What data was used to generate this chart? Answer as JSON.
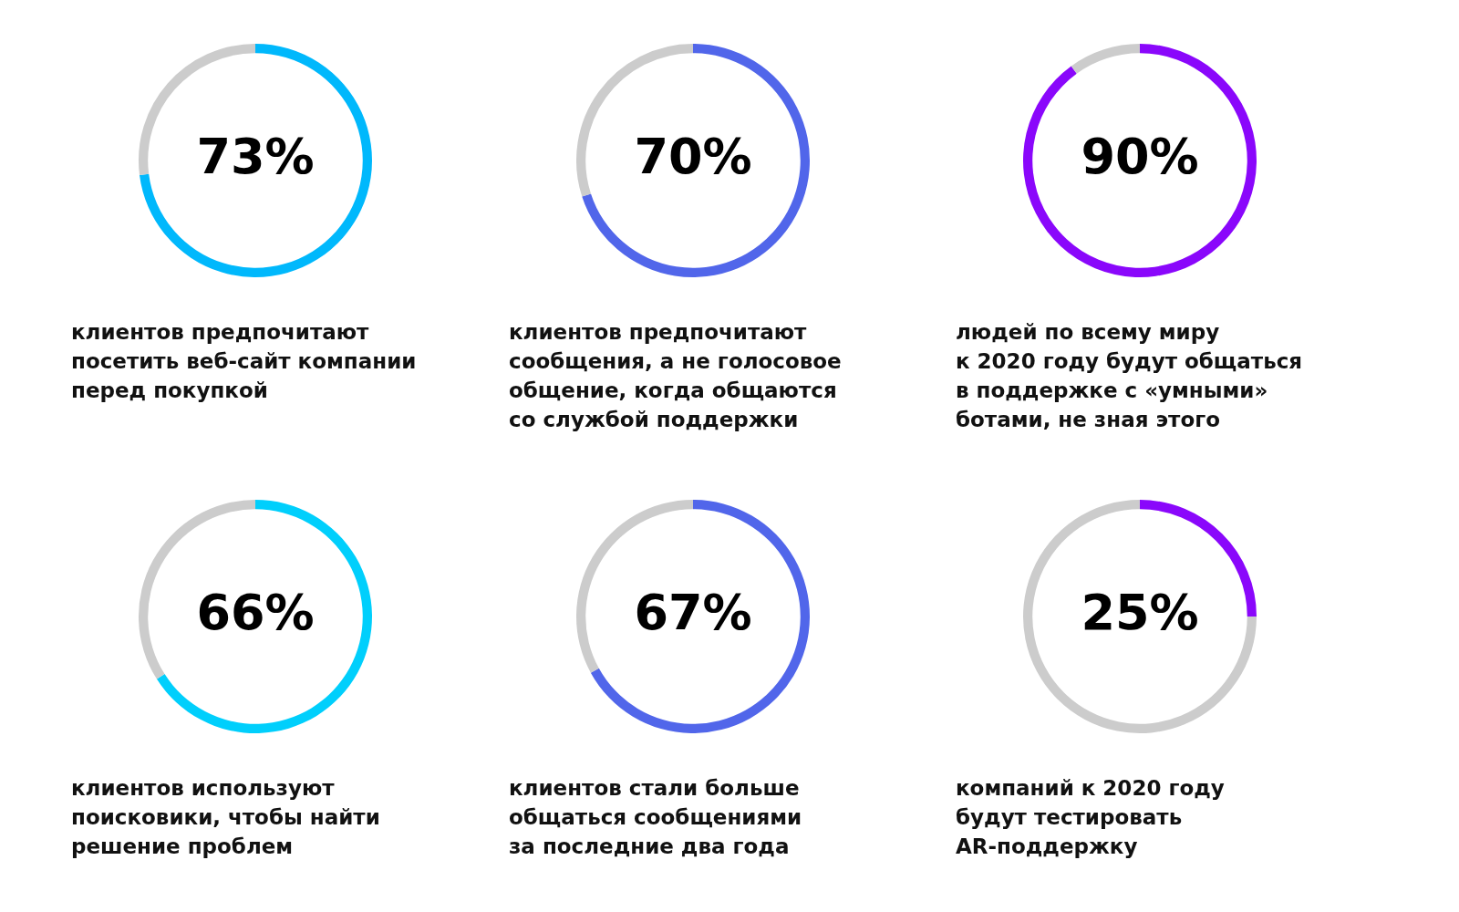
{
  "chart_data": [
    {
      "type": "donut",
      "categories": [
        null,
        null
      ],
      "values": [
        73,
        27
      ],
      "colors": [
        "#00b8fc",
        "#cccccc"
      ],
      "value_labels": [
        "73%",
        null
      ],
      "legend": false,
      "annotations": [
        "клиентов предпочитают\nпосетить веб-сайт компании\nперед покупкой"
      ]
    },
    {
      "type": "donut",
      "categories": [
        null,
        null
      ],
      "values": [
        70,
        30
      ],
      "colors": [
        "#5166ea",
        "#cccccc"
      ],
      "value_labels": [
        "70%",
        null
      ],
      "legend": false,
      "annotations": [
        "клиентов предпочитают\nсообщения, а не голосовое\nобщение, когда общаются\nсо службой поддержки"
      ]
    },
    {
      "type": "donut",
      "categories": [
        null,
        null
      ],
      "values": [
        90,
        10
      ],
      "colors": [
        "#8a07fb",
        "#cccccc"
      ],
      "value_labels": [
        "90%",
        null
      ],
      "legend": false,
      "annotations": [
        "людей по всему миру\nк 2020 году будут общаться\nв поддержке с «умными»\nботами, не зная этого"
      ]
    },
    {
      "type": "donut",
      "categories": [
        null,
        null
      ],
      "values": [
        66,
        34
      ],
      "colors": [
        "#00cffc",
        "#cccccc"
      ],
      "value_labels": [
        "66%",
        null
      ],
      "legend": false,
      "annotations": [
        "клиентов используют\nпоисковики, чтобы найти\nрешение проблем"
      ]
    },
    {
      "type": "donut",
      "categories": [
        null,
        null
      ],
      "values": [
        67,
        33
      ],
      "colors": [
        "#5166ea",
        "#cccccc"
      ],
      "value_labels": [
        "67%",
        null
      ],
      "legend": false,
      "annotations": [
        "клиентов стали больше\nобщаться сообщениями\nза последние два года"
      ]
    },
    {
      "type": "donut",
      "categories": [
        null,
        null
      ],
      "values": [
        25,
        75
      ],
      "colors": [
        "#8a07fb",
        "#cccccc"
      ],
      "value_labels": [
        "25%",
        null
      ],
      "legend": false,
      "annotations": [
        "компаний к 2020 году\nбудут тестировать\nAR-поддержку"
      ]
    }
  ]
}
